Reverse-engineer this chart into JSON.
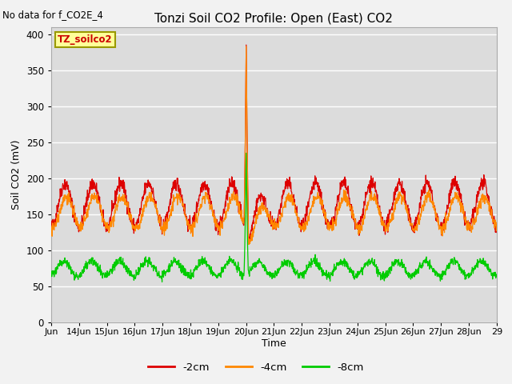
{
  "title": "Tonzi Soil CO2 Profile: Open (East) CO2",
  "subtitle": "No data for f_CO2E_4",
  "ylabel": "Soil CO2 (mV)",
  "xlabel": "Time",
  "ylim": [
    0,
    410
  ],
  "yticks": [
    0,
    50,
    100,
    150,
    200,
    250,
    300,
    350,
    400
  ],
  "xticklabels": [
    "Jun",
    "14Jun",
    "15Jun",
    "16Jun",
    "17Jun",
    "18Jun",
    "19Jun",
    "20Jun",
    "21Jun",
    "22Jun",
    "23Jun",
    "24Jun",
    "25Jun",
    "26Jun",
    "27Jun",
    "28Jun",
    "29"
  ],
  "legend_labels": [
    "-2cm",
    "-4cm",
    "-8cm"
  ],
  "legend_colors": [
    "#dd0000",
    "#ff8800",
    "#00cc00"
  ],
  "color_2cm": "#dd0000",
  "color_4cm": "#ff8800",
  "color_8cm": "#00cc00",
  "bg_color": "#dcdcdc",
  "plot_bg_color": "#dcdcdc",
  "box_label": "TZ_soilco2",
  "box_facecolor": "#ffff99",
  "box_edgecolor": "#999900",
  "spike_day": 7.0,
  "n_days": 16,
  "base_2cm": 163,
  "amp_2cm": 30,
  "base_4cm": 153,
  "amp_4cm": 22,
  "base_8cm": 75,
  "amp_8cm": 10
}
